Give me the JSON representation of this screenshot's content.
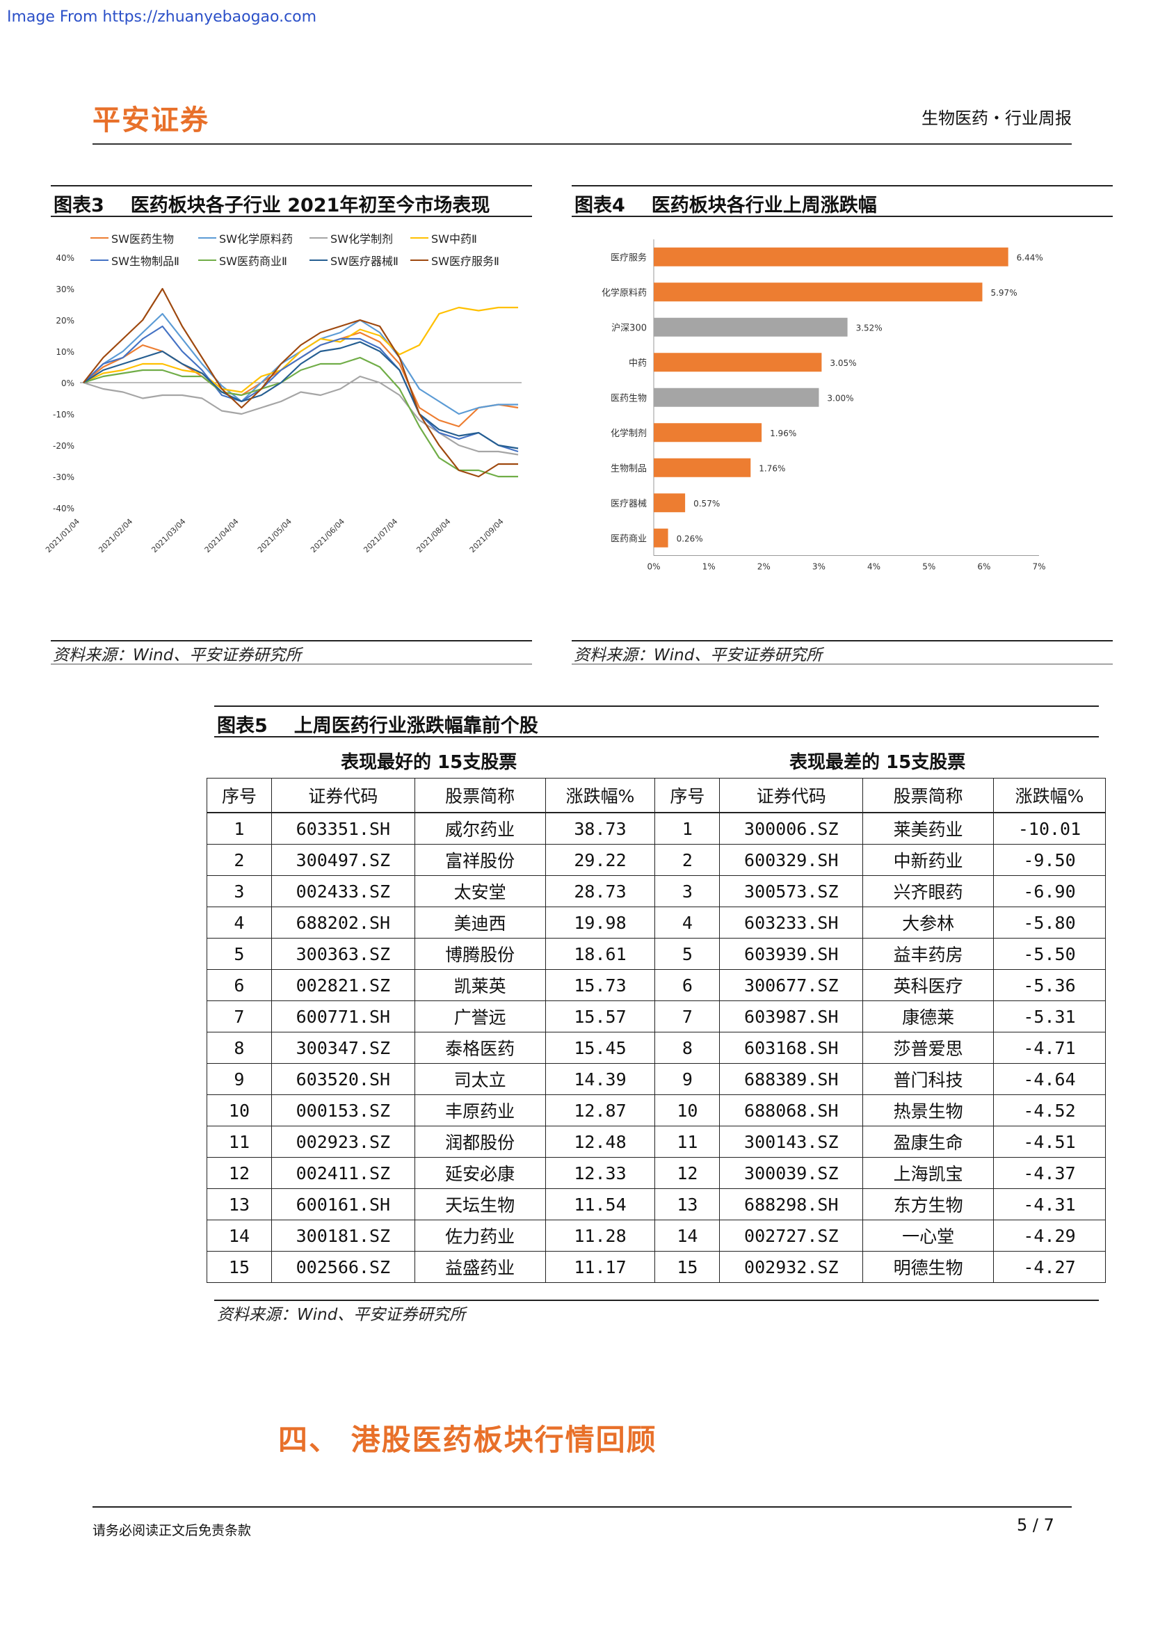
{
  "watermark": "Image From https://zhuanyebaogao.com",
  "header": {
    "logo": "平安证券",
    "category": "生物医药・行业周报"
  },
  "fig3": {
    "title_num": "图表3",
    "title": "医药板块各子行业 2021年初至今市场表现",
    "source": "资料来源：Wind、平安证券研究所",
    "colors": {
      "SW医药生物": "#ed7d31",
      "SW化学原料药": "#5b9bd5",
      "SW化学制剂": "#a5a5a5",
      "SW中药Ⅱ": "#ffc000",
      "SW生物制品Ⅱ": "#4472c4",
      "SW医药商业Ⅱ": "#70ad47",
      "SW医疗器械Ⅱ": "#255e91",
      "SW医疗服务Ⅱ": "#9e480e"
    },
    "chart_data": {
      "type": "line",
      "y_ticks": [
        "40%",
        "30%",
        "20%",
        "10%",
        "0%",
        "-10%",
        "-20%",
        "-30%",
        "-40%"
      ],
      "x_ticks": [
        "2021/01/04",
        "2021/02/04",
        "2021/03/04",
        "2021/04/04",
        "2021/05/04",
        "2021/06/04",
        "2021/07/04",
        "2021/08/04",
        "2021/09/04"
      ],
      "ylim": [
        -40,
        40
      ],
      "series": [
        {
          "name": "SW医药生物",
          "values": [
            0,
            5,
            8,
            12,
            10,
            6,
            2,
            -3,
            -4,
            0,
            4,
            8,
            12,
            14,
            16,
            13,
            6,
            -8,
            -12,
            -14,
            -8,
            -7,
            -8
          ]
        },
        {
          "name": "SW化学原料药",
          "values": [
            0,
            6,
            10,
            16,
            22,
            14,
            6,
            -1,
            -6,
            0,
            6,
            10,
            14,
            16,
            20,
            16,
            8,
            -2,
            -6,
            -10,
            -8,
            -7,
            -7
          ]
        },
        {
          "name": "SW化学制剂",
          "values": [
            0,
            -2,
            -3,
            -5,
            -4,
            -4,
            -5,
            -9,
            -10,
            -8,
            -6,
            -3,
            -4,
            -2,
            2,
            0,
            -4,
            -12,
            -16,
            -20,
            -22,
            -22,
            -23
          ]
        },
        {
          "name": "SW中药Ⅱ",
          "values": [
            0,
            3,
            4,
            6,
            6,
            4,
            3,
            -2,
            -3,
            2,
            4,
            10,
            14,
            13,
            17,
            15,
            9,
            12,
            22,
            24,
            23,
            24,
            24
          ]
        },
        {
          "name": "SW生物制品Ⅱ",
          "values": [
            0,
            6,
            8,
            14,
            18,
            10,
            4,
            -4,
            -6,
            -2,
            4,
            8,
            12,
            14,
            14,
            11,
            4,
            -10,
            -16,
            -18,
            -16,
            -20,
            -22
          ]
        },
        {
          "name": "SW医药商业Ⅱ",
          "values": [
            0,
            2,
            3,
            4,
            4,
            2,
            2,
            -3,
            -4,
            -2,
            0,
            4,
            6,
            6,
            8,
            5,
            -2,
            -14,
            -24,
            -28,
            -28,
            -30,
            -30
          ]
        },
        {
          "name": "SW医疗器械Ⅱ",
          "values": [
            0,
            4,
            6,
            8,
            10,
            6,
            3,
            -3,
            -6,
            -4,
            0,
            6,
            10,
            11,
            13,
            10,
            4,
            -10,
            -15,
            -17,
            -16,
            -20,
            -21
          ]
        },
        {
          "name": "SW医疗服务Ⅱ",
          "values": [
            0,
            8,
            14,
            20,
            30,
            18,
            8,
            -2,
            -8,
            -2,
            6,
            12,
            16,
            18,
            20,
            18,
            8,
            -10,
            -20,
            -28,
            -30,
            -26,
            -26
          ]
        }
      ]
    }
  },
  "fig4": {
    "title_num": "图表4",
    "title": "医药板块各行业上周涨跌幅",
    "source": "资料来源：Wind、平安证券研究所",
    "chart_data": {
      "type": "bar",
      "orientation": "horizontal",
      "categories": [
        "医疗服务",
        "化学原料药",
        "沪深300",
        "中药",
        "医药生物",
        "化学制剂",
        "生物制品",
        "医疗器械",
        "医药商业"
      ],
      "values": [
        6.44,
        5.97,
        3.52,
        3.05,
        3.0,
        1.96,
        1.76,
        0.57,
        0.26
      ],
      "value_labels": [
        "6.44%",
        "5.97%",
        "3.52%",
        "3.05%",
        "3.00%",
        "1.96%",
        "1.76%",
        "0.57%",
        "0.26%"
      ],
      "bar_colors": [
        "#ed7d31",
        "#ed7d31",
        "#a5a5a5",
        "#ed7d31",
        "#a5a5a5",
        "#ed7d31",
        "#ed7d31",
        "#ed7d31",
        "#ed7d31"
      ],
      "x_ticks": [
        "0%",
        "1%",
        "2%",
        "3%",
        "4%",
        "5%",
        "6%",
        "7%"
      ],
      "xlim": [
        0,
        7
      ]
    }
  },
  "fig5": {
    "title_num": "图表5",
    "title": "上周医药行业涨跌幅靠前个股",
    "best_heading": "表现最好的 15支股票",
    "worst_heading": "表现最差的 15支股票",
    "columns": [
      "序号",
      "证券代码",
      "股票简称",
      "涨跌幅%",
      "序号",
      "证券代码",
      "股票简称",
      "涨跌幅%"
    ],
    "rows": [
      [
        "1",
        "603351.SH",
        "威尔药业",
        "38.73",
        "1",
        "300006.SZ",
        "莱美药业",
        "-10.01"
      ],
      [
        "2",
        "300497.SZ",
        "富祥股份",
        "29.22",
        "2",
        "600329.SH",
        "中新药业",
        "-9.50"
      ],
      [
        "3",
        "002433.SZ",
        "太安堂",
        "28.73",
        "3",
        "300573.SZ",
        "兴齐眼药",
        "-6.90"
      ],
      [
        "4",
        "688202.SH",
        "美迪西",
        "19.98",
        "4",
        "603233.SH",
        "大参林",
        "-5.80"
      ],
      [
        "5",
        "300363.SZ",
        "博腾股份",
        "18.61",
        "5",
        "603939.SH",
        "益丰药房",
        "-5.50"
      ],
      [
        "6",
        "002821.SZ",
        "凯莱英",
        "15.73",
        "6",
        "300677.SZ",
        "英科医疗",
        "-5.36"
      ],
      [
        "7",
        "600771.SH",
        "广誉远",
        "15.57",
        "7",
        "603987.SH",
        "康德莱",
        "-5.31"
      ],
      [
        "8",
        "300347.SZ",
        "泰格医药",
        "15.45",
        "8",
        "603168.SH",
        "莎普爱思",
        "-4.71"
      ],
      [
        "9",
        "603520.SH",
        "司太立",
        "14.39",
        "9",
        "688389.SH",
        "普门科技",
        "-4.64"
      ],
      [
        "10",
        "000153.SZ",
        "丰原药业",
        "12.87",
        "10",
        "688068.SH",
        "热景生物",
        "-4.52"
      ],
      [
        "11",
        "002923.SZ",
        "润都股份",
        "12.48",
        "11",
        "300143.SZ",
        "盈康生命",
        "-4.51"
      ],
      [
        "12",
        "002411.SZ",
        "延安必康",
        "12.33",
        "12",
        "300039.SZ",
        "上海凯宝",
        "-4.37"
      ],
      [
        "13",
        "600161.SH",
        "天坛生物",
        "11.54",
        "13",
        "688298.SH",
        "东方生物",
        "-4.31"
      ],
      [
        "14",
        "300181.SZ",
        "佐力药业",
        "11.28",
        "14",
        "002727.SZ",
        "一心堂",
        "-4.29"
      ],
      [
        "15",
        "002566.SZ",
        "益盛药业",
        "11.17",
        "15",
        "002932.SZ",
        "明德生物",
        "-4.27"
      ]
    ],
    "source": "资料来源：Wind、平安证券研究所"
  },
  "section": {
    "title": "四、 港股医药板块行情回顾"
  },
  "footer": {
    "disclaimer": "请务必阅读正文后免责条款",
    "page": "5 / 7"
  }
}
